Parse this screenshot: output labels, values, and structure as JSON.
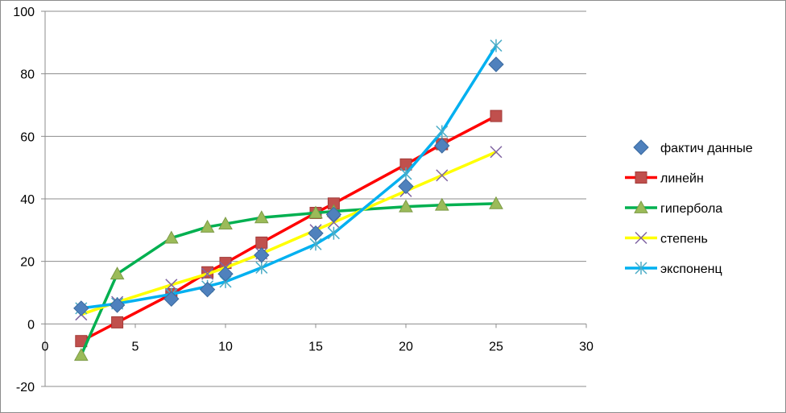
{
  "chart_data": {
    "type": "scatter",
    "xlim": [
      0,
      30
    ],
    "ylim": [
      -20,
      100
    ],
    "x_ticks": [
      0,
      5,
      10,
      15,
      20,
      25,
      30
    ],
    "y_ticks": [
      -20,
      0,
      20,
      40,
      60,
      80,
      100
    ],
    "grid": "horizontal",
    "legend_position": "right",
    "series": [
      {
        "name": "фактич данные",
        "style": "markers",
        "marker": "diamond",
        "color": "#4f81bd",
        "points": [
          [
            2,
            5
          ],
          [
            4,
            6
          ],
          [
            7,
            8
          ],
          [
            9,
            11
          ],
          [
            10,
            16
          ],
          [
            12,
            22
          ],
          [
            15,
            29
          ],
          [
            16,
            35
          ],
          [
            20,
            44
          ],
          [
            22,
            57
          ],
          [
            25,
            83
          ]
        ]
      },
      {
        "name": "линейн",
        "style": "line+markers",
        "marker": "square",
        "color": "#ff0000",
        "marker_color": "#c0504d",
        "points": [
          [
            2,
            -5.5
          ],
          [
            4,
            0.5
          ],
          [
            7,
            9.5
          ],
          [
            9,
            16.5
          ],
          [
            10,
            19.5
          ],
          [
            12,
            26
          ],
          [
            15,
            35.5
          ],
          [
            16,
            38.5
          ],
          [
            20,
            51
          ],
          [
            22,
            57.5
          ],
          [
            25,
            66.5
          ]
        ]
      },
      {
        "name": "гипербола",
        "style": "line+markers",
        "marker": "triangle",
        "color": "#00b050",
        "marker_color": "#9bbb59",
        "points": [
          [
            2,
            -10
          ],
          [
            4,
            16
          ],
          [
            7,
            27.5
          ],
          [
            9,
            31
          ],
          [
            10,
            32
          ],
          [
            12,
            34
          ],
          [
            15,
            35.5
          ],
          [
            16,
            36
          ],
          [
            20,
            37.5
          ],
          [
            22,
            38
          ],
          [
            25,
            38.5
          ]
        ]
      },
      {
        "name": "степень",
        "style": "line+markers",
        "marker": "x",
        "color": "#ffff00",
        "marker_color": "#8064a2",
        "points": [
          [
            2,
            3
          ],
          [
            4,
            7
          ],
          [
            7,
            12.5
          ],
          [
            9,
            16
          ],
          [
            10,
            18
          ],
          [
            12,
            22.5
          ],
          [
            15,
            30
          ],
          [
            16,
            32.5
          ],
          [
            20,
            42.5
          ],
          [
            22,
            47.5
          ],
          [
            25,
            55
          ]
        ]
      },
      {
        "name": "экспоненц",
        "style": "line+markers",
        "marker": "star",
        "color": "#00b0f0",
        "marker_color": "#4bacc6",
        "points": [
          [
            2,
            5
          ],
          [
            4,
            6.5
          ],
          [
            7,
            9.5
          ],
          [
            9,
            12
          ],
          [
            10,
            13.5
          ],
          [
            12,
            18
          ],
          [
            15,
            25.5
          ],
          [
            16,
            29
          ],
          [
            20,
            48
          ],
          [
            22,
            61.5
          ],
          [
            25,
            89
          ]
        ]
      }
    ]
  }
}
